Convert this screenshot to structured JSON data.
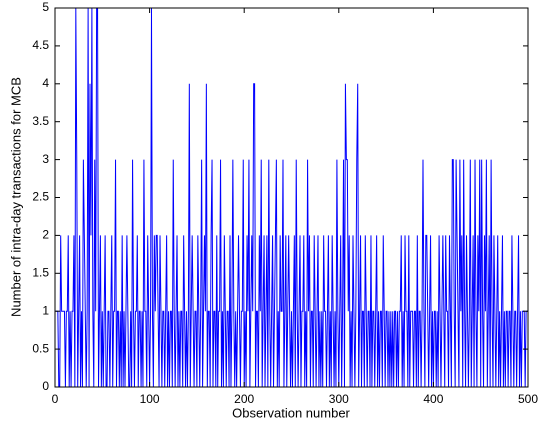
{
  "chart_data": {
    "type": "line",
    "xlabel": "Observation number",
    "ylabel": "Number of intra-day transactions for MCB",
    "color": "#0000ff",
    "xlim": [
      0,
      500
    ],
    "ylim": [
      0,
      5
    ],
    "xticks": [
      0,
      100,
      200,
      300,
      400,
      500
    ],
    "yticks": [
      0,
      0.5,
      1,
      1.5,
      2,
      2.5,
      3,
      3.5,
      4,
      4.5,
      5
    ],
    "x": [
      1,
      2,
      3,
      4,
      5,
      6,
      7,
      8,
      9,
      10,
      11,
      12,
      13,
      14,
      15,
      16,
      17,
      18,
      19,
      20,
      21,
      22,
      23,
      24,
      25,
      26,
      27,
      28,
      29,
      30,
      31,
      32,
      33,
      34,
      35,
      36,
      37,
      38,
      39,
      40,
      41,
      42,
      43,
      44,
      45,
      46,
      47,
      48,
      49,
      50,
      51,
      52,
      53,
      54,
      55,
      56,
      57,
      58,
      59,
      60,
      61,
      62,
      63,
      64,
      65,
      66,
      67,
      68,
      69,
      70,
      71,
      72,
      73,
      74,
      75,
      76,
      77,
      78,
      79,
      80,
      81,
      82,
      83,
      84,
      85,
      86,
      87,
      88,
      89,
      90,
      91,
      92,
      93,
      94,
      95,
      96,
      97,
      98,
      99,
      100,
      101,
      102,
      103,
      104,
      105,
      106,
      107,
      108,
      109,
      110,
      111,
      112,
      113,
      114,
      115,
      116,
      117,
      118,
      119,
      120,
      121,
      122,
      123,
      124,
      125,
      126,
      127,
      128,
      129,
      130,
      131,
      132,
      133,
      134,
      135,
      136,
      137,
      138,
      139,
      140,
      141,
      142,
      143,
      144,
      145,
      146,
      147,
      148,
      149,
      150,
      151,
      152,
      153,
      154,
      155,
      156,
      157,
      158,
      159,
      160,
      161,
      162,
      163,
      164,
      165,
      166,
      167,
      168,
      169,
      170,
      171,
      172,
      173,
      174,
      175,
      176,
      177,
      178,
      179,
      180,
      181,
      182,
      183,
      184,
      185,
      186,
      187,
      188,
      189,
      190,
      191,
      192,
      193,
      194,
      195,
      196,
      197,
      198,
      199,
      200,
      201,
      202,
      203,
      204,
      205,
      206,
      207,
      208,
      209,
      210,
      211,
      212,
      213,
      214,
      215,
      216,
      217,
      218,
      219,
      220,
      221,
      222,
      223,
      224,
      225,
      226,
      227,
      228,
      229,
      230,
      231,
      232,
      233,
      234,
      235,
      236,
      237,
      238,
      239,
      240,
      241,
      242,
      243,
      244,
      245,
      246,
      247,
      248,
      249,
      250,
      251,
      252,
      253,
      254,
      255,
      256,
      257,
      258,
      259,
      260,
      261,
      262,
      263,
      264,
      265,
      266,
      267,
      268,
      269,
      270,
      271,
      272,
      273,
      274,
      275,
      276,
      277,
      278,
      279,
      280,
      281,
      282,
      283,
      284,
      285,
      286,
      287,
      288,
      289,
      290,
      291,
      292,
      293,
      294,
      295,
      296,
      297,
      298,
      299,
      300,
      301,
      302,
      303,
      304,
      305,
      306,
      307,
      308,
      309,
      310,
      311,
      312,
      313,
      314,
      315,
      316,
      317,
      318,
      319,
      320,
      321,
      322,
      323,
      324,
      325,
      326,
      327,
      328,
      329,
      330,
      331,
      332,
      333,
      334,
      335,
      336,
      337,
      338,
      339,
      340,
      341,
      342,
      343,
      344,
      345,
      346,
      347,
      348,
      349,
      350,
      351,
      352,
      353,
      354,
      355,
      356,
      357,
      358,
      359,
      360,
      361,
      362,
      363,
      364,
      365,
      366,
      367,
      368,
      369,
      370,
      371,
      372,
      373,
      374,
      375,
      376,
      377,
      378,
      379,
      380,
      381,
      382,
      383,
      384,
      385,
      386,
      387,
      388,
      389,
      390,
      391,
      392,
      393,
      394,
      395,
      396,
      397,
      398,
      399,
      400,
      401,
      402,
      403,
      404,
      405,
      406,
      407,
      408,
      409,
      410,
      411,
      412,
      413,
      414,
      415,
      416,
      417,
      418,
      419,
      420,
      421,
      422,
      423,
      424,
      425,
      426,
      427,
      428,
      429,
      430,
      431,
      432,
      433,
      434,
      435,
      436,
      437,
      438,
      439,
      440,
      441,
      442,
      443,
      444,
      445,
      446,
      447,
      448,
      449,
      450,
      451,
      452,
      453,
      454,
      455,
      456,
      457,
      458,
      459,
      460,
      461,
      462,
      463,
      464,
      465,
      466,
      467,
      468,
      469,
      470,
      471,
      472,
      473,
      474,
      475,
      476,
      477,
      478,
      479,
      480,
      481,
      482,
      483,
      484,
      485,
      486,
      487,
      488,
      489,
      490,
      491,
      492,
      493,
      494,
      495,
      496,
      497,
      498,
      499,
      500
    ],
    "values": [
      1,
      1,
      1,
      0,
      0,
      2,
      1,
      1,
      1,
      1,
      0,
      1,
      1,
      2,
      0,
      1,
      0,
      1,
      1,
      2,
      0,
      5,
      3,
      0,
      1,
      2,
      0,
      1,
      0,
      3,
      2,
      1,
      0,
      1,
      5,
      0,
      4,
      2,
      5,
      1,
      0,
      3,
      1,
      5,
      5,
      0,
      1,
      2,
      0,
      1,
      0,
      1,
      2,
      0,
      0,
      1,
      1,
      0,
      1,
      2,
      0,
      1,
      1,
      3,
      0,
      1,
      1,
      0,
      1,
      0,
      2,
      0,
      1,
      0,
      1,
      2,
      1,
      0,
      0,
      1,
      0,
      3,
      1,
      0,
      1,
      1,
      2,
      0,
      1,
      1,
      0,
      1,
      0,
      3,
      1,
      1,
      0,
      2,
      1,
      0,
      1,
      5,
      1,
      0,
      2,
      1,
      2,
      2,
      1,
      0,
      2,
      1,
      0,
      1,
      1,
      0,
      1,
      2,
      0,
      1,
      0,
      1,
      1,
      0,
      3,
      1,
      0,
      1,
      2,
      0,
      1,
      0,
      1,
      1,
      0,
      2,
      1,
      0,
      1,
      0,
      1,
      4,
      0,
      1,
      2,
      1,
      0,
      1,
      1,
      0,
      2,
      1,
      0,
      1,
      3,
      0,
      1,
      2,
      1,
      4,
      0,
      1,
      1,
      0,
      2,
      3,
      0,
      1,
      1,
      0,
      2,
      0,
      1,
      1,
      3,
      0,
      1,
      0,
      2,
      1,
      0,
      1,
      1,
      0,
      2,
      0,
      1,
      3,
      1,
      0,
      1,
      0,
      1,
      2,
      1,
      0,
      1,
      1,
      3,
      0,
      1,
      0,
      2,
      1,
      3,
      0,
      1,
      2,
      1,
      4,
      4,
      0,
      1,
      1,
      0,
      2,
      1,
      3,
      0,
      1,
      2,
      0,
      1,
      2,
      0,
      3,
      1,
      0,
      1,
      2,
      0,
      1,
      2,
      3,
      0,
      1,
      0,
      2,
      1,
      1,
      3,
      0,
      1,
      2,
      0,
      1,
      2,
      1,
      0,
      1,
      0,
      1,
      2,
      0,
      3,
      1,
      0,
      1,
      2,
      0,
      1,
      1,
      2,
      0,
      1,
      0,
      3,
      1,
      2,
      0,
      1,
      1,
      0,
      2,
      1,
      0,
      1,
      2,
      0,
      1,
      0,
      1,
      0,
      2,
      1,
      1,
      0,
      1,
      2,
      0,
      1,
      0,
      2,
      1,
      0,
      1,
      0,
      3,
      1,
      0,
      1,
      2,
      0,
      1,
      3,
      0,
      4,
      3,
      3,
      1,
      2,
      0,
      1,
      0,
      2,
      1,
      0,
      1,
      3,
      4,
      0,
      1,
      2,
      0,
      1,
      1,
      0,
      2,
      1,
      0,
      1,
      1,
      0,
      2,
      0,
      1,
      1,
      0,
      1,
      2,
      0,
      1,
      0,
      1,
      1,
      0,
      2,
      1,
      0,
      1,
      1,
      0,
      1,
      0,
      1,
      0,
      1,
      0,
      1,
      1,
      0,
      1,
      0,
      1,
      1,
      2,
      0,
      1,
      0,
      2,
      1,
      1,
      0,
      2,
      0,
      1,
      1,
      1,
      0,
      1,
      1,
      0,
      2,
      0,
      1,
      1,
      0,
      1,
      3,
      1,
      0,
      2,
      2,
      1,
      0,
      1,
      2,
      0,
      1,
      0,
      1,
      1,
      0,
      1,
      0,
      2,
      1,
      0,
      1,
      2,
      1,
      0,
      2,
      1,
      1,
      0,
      2,
      1,
      0,
      3,
      3,
      1,
      0,
      3,
      2,
      1,
      0,
      3,
      1,
      2,
      0,
      3,
      1,
      0,
      2,
      1,
      0,
      1,
      3,
      0,
      1,
      2,
      0,
      3,
      1,
      0,
      2,
      1,
      3,
      0,
      3,
      1,
      0,
      2,
      1,
      3,
      0,
      1,
      2,
      0,
      3,
      1,
      0,
      2,
      1,
      0,
      1,
      2,
      0,
      1,
      0,
      1,
      2,
      0,
      1,
      0,
      1,
      1,
      0,
      1,
      1,
      0,
      2,
      1,
      0,
      1,
      1,
      0,
      1,
      2,
      0,
      1,
      0,
      1,
      1,
      1,
      0,
      1,
      1,
      1
    ]
  }
}
